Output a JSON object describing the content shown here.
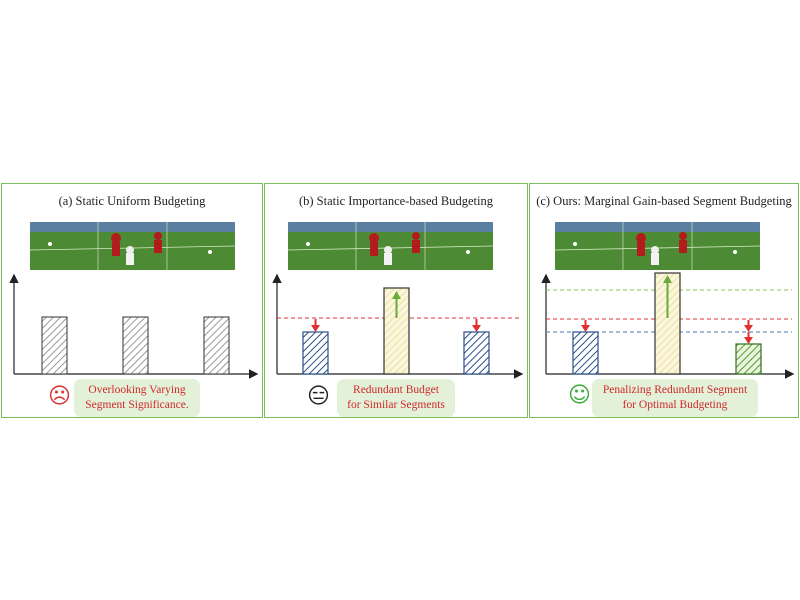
{
  "panels": [
    {
      "title": "(a) Static Uniform Budgeting",
      "note_line1": "Overlooking Varying",
      "note_line2": "Segment Significance.",
      "face": "☹",
      "face_color": "#d93030"
    },
    {
      "title": "(b) Static Importance-based Budgeting",
      "note_line1": "Redundant Budget",
      "note_line2": "for Similar Segments",
      "face": "😑",
      "face_color": "#222222"
    },
    {
      "title": "(c) Ours: Marginal Gain-based Segment Budgeting",
      "note_line1": "Penalizing Redundant Segment",
      "note_line2": "for Optimal Budgeting",
      "face": "☺",
      "face_color": "#3aaa3a"
    }
  ],
  "colors": {
    "border": "#7bbf5a",
    "note_bg": "#e3f1d8",
    "note_text": "#d0282a",
    "red_line": "#e03030",
    "green": "#6aaa3a",
    "blue": "#2a4f8a",
    "yellow": "#f1e7a6"
  },
  "chart_data": [
    {
      "type": "bar",
      "bars": [
        0.5,
        0.5,
        0.5
      ],
      "fill": "gray-hatch"
    },
    {
      "type": "bar",
      "bars": [
        0.35,
        0.7,
        0.35
      ],
      "threshold": 0.5,
      "fill": [
        "blue-hatch",
        "yellow-hatch",
        "blue-hatch"
      ]
    },
    {
      "type": "bar",
      "bars": [
        0.35,
        0.85,
        0.25
      ],
      "thresholds": [
        0.7,
        0.5,
        0.35
      ],
      "fill": [
        "blue-hatch",
        "yellow-hatch",
        "green-hatch"
      ]
    }
  ]
}
